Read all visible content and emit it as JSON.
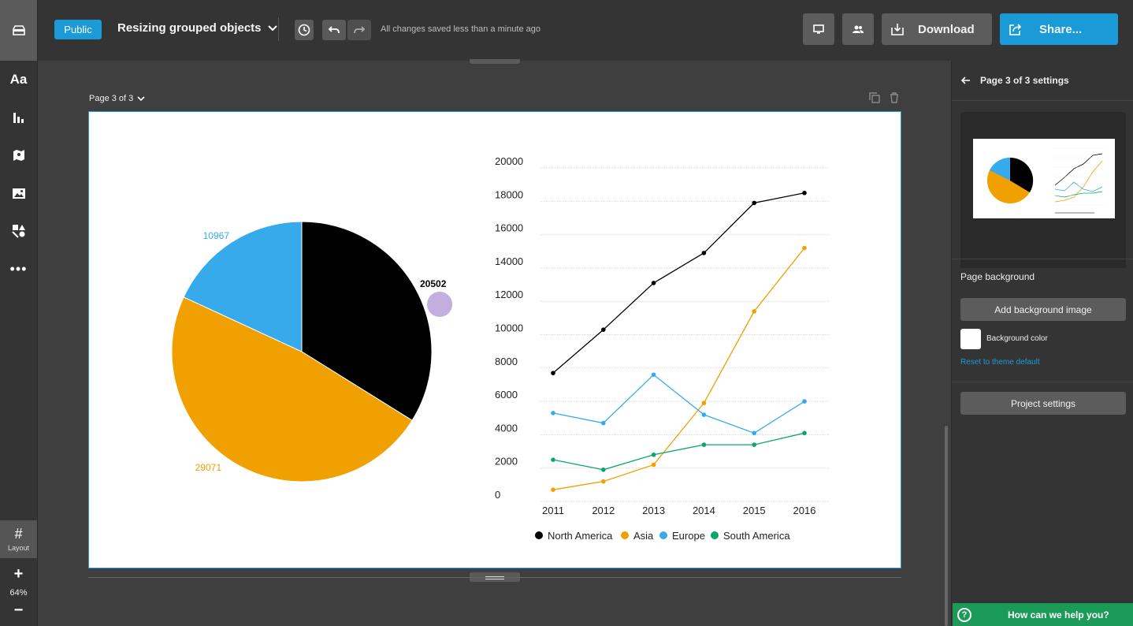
{
  "toolbar": {
    "visibility_label": "Public",
    "project_title": "Resizing grouped objects",
    "save_status": "All changes saved less than a minute ago",
    "download_label": "Download",
    "share_label": "Share..."
  },
  "sidebar": {
    "items": [
      "home-icon",
      "text-icon",
      "chart-icon",
      "map-icon",
      "image-icon",
      "shapes-icon",
      "more-icon"
    ],
    "layout_label": "Layout",
    "zoom_level": "64%",
    "zoom_in": "+",
    "zoom_out": "−"
  },
  "canvas": {
    "page_label": "Page 3 of 3"
  },
  "right_panel": {
    "header": "Page 3 of 3 settings",
    "page_background_heading": "Page background",
    "add_bg_image_label": "Add background image",
    "bg_color_label": "Background color",
    "bg_color_value": "#ffffff",
    "reset_label": "Reset to theme default",
    "project_settings_label": "Project settings",
    "help_label": "How can we help you?"
  },
  "chart_data": [
    {
      "type": "pie",
      "slices": [
        {
          "label": "20502",
          "value": 20502,
          "color": "#000000"
        },
        {
          "label": "29071",
          "value": 29071,
          "color": "#f0a000"
        },
        {
          "label": "10967",
          "value": 10967,
          "color": "#36aaea"
        }
      ]
    },
    {
      "type": "line",
      "x": [
        "2011",
        "2012",
        "2013",
        "2014",
        "2015",
        "2016"
      ],
      "ylim": [
        0,
        20000
      ],
      "yticks": [
        "0",
        "2000",
        "4000",
        "6000",
        "8000",
        "10000",
        "12000",
        "14000",
        "16000",
        "18000",
        "20000"
      ],
      "grid": true,
      "legend_position": "bottom",
      "series": [
        {
          "name": "North America",
          "color": "#000000",
          "values": [
            7700,
            10300,
            13100,
            14900,
            17900,
            18500
          ]
        },
        {
          "name": "Asia",
          "color": "#f0a000",
          "values": [
            700,
            1200,
            2200,
            5900,
            11400,
            15200
          ]
        },
        {
          "name": "Europe",
          "color": "#36aaea",
          "values": [
            5300,
            4700,
            7600,
            5200,
            4100,
            6000
          ]
        },
        {
          "name": "South America",
          "color": "#0aa66a",
          "values": [
            2500,
            1900,
            2800,
            3400,
            3400,
            4100
          ]
        }
      ]
    }
  ]
}
